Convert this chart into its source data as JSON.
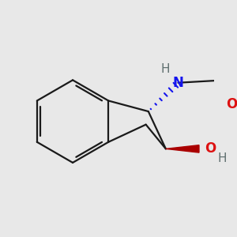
{
  "bg_color": "#e8e8e8",
  "bond_color": "#1a1a1a",
  "N_color": "#1515ee",
  "O_color": "#dd1111",
  "H_color": "#607070",
  "line_width": 1.6,
  "figsize": [
    3.0,
    3.0
  ],
  "dpi": 100,
  "xlim": [
    -1.95,
    1.75
  ],
  "ylim": [
    -1.65,
    1.55
  ]
}
